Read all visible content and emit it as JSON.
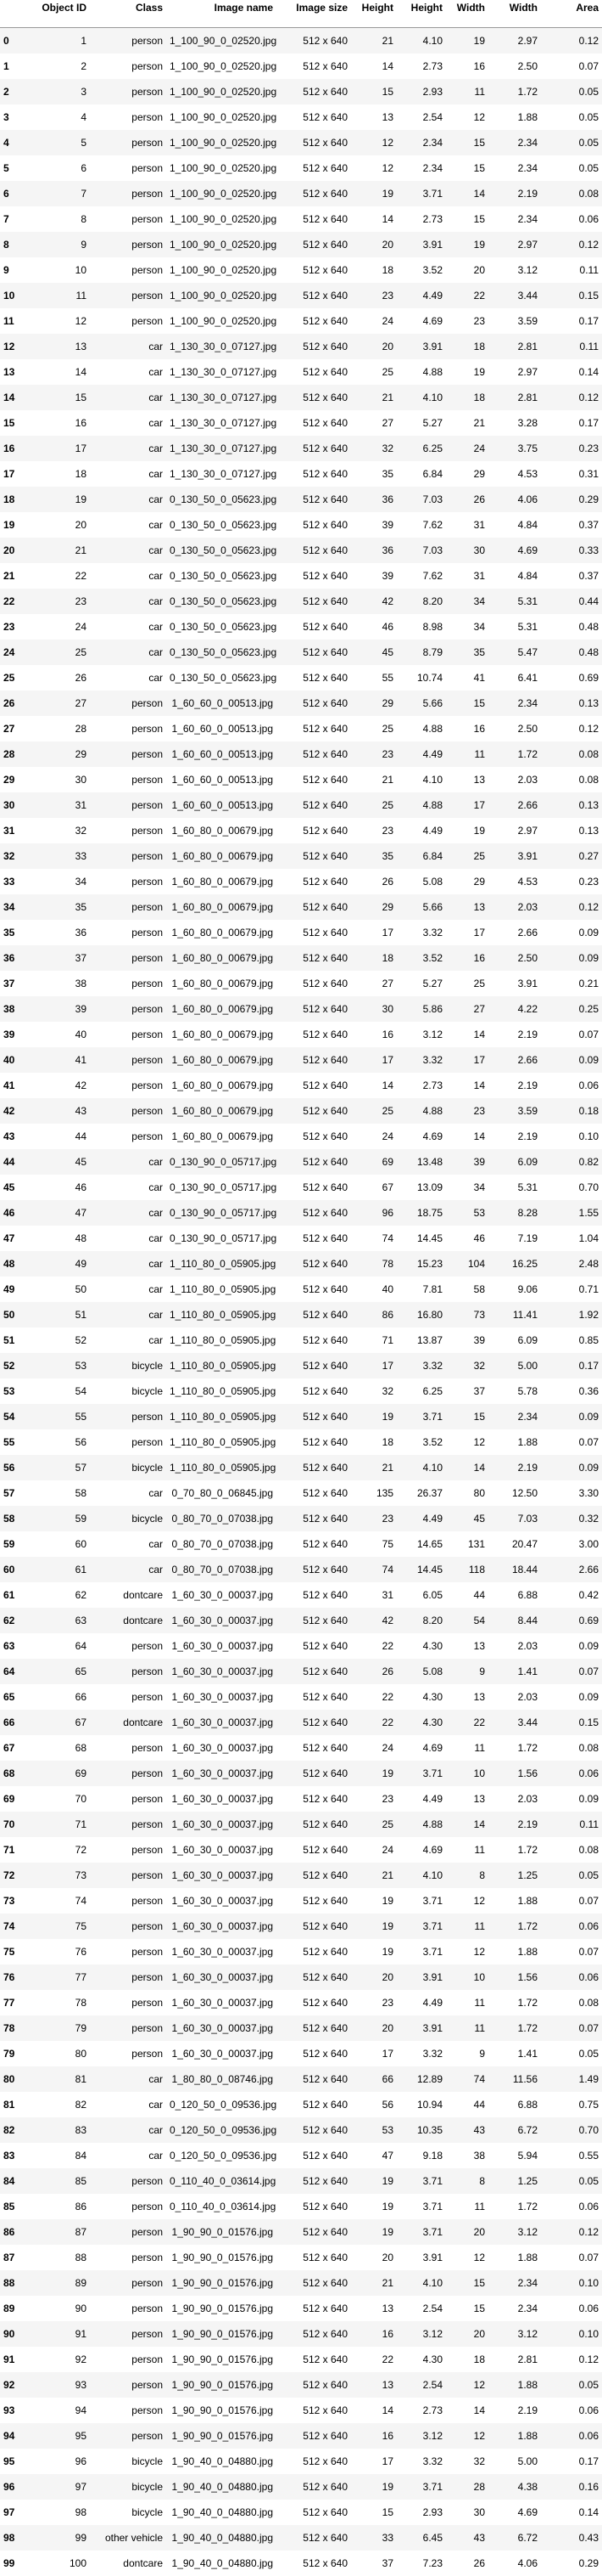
{
  "table": {
    "columns": [
      "",
      "Object ID",
      "Class",
      "Image name",
      "Image size",
      "Height",
      "Height",
      "Width",
      "Width",
      "Area"
    ],
    "rows": [
      [
        "0",
        "1",
        "person",
        "1_100_90_0_02520.jpg",
        "512 x 640",
        "21",
        "4.10",
        "19",
        "2.97",
        "0.12"
      ],
      [
        "1",
        "2",
        "person",
        "1_100_90_0_02520.jpg",
        "512 x 640",
        "14",
        "2.73",
        "16",
        "2.50",
        "0.07"
      ],
      [
        "2",
        "3",
        "person",
        "1_100_90_0_02520.jpg",
        "512 x 640",
        "15",
        "2.93",
        "11",
        "1.72",
        "0.05"
      ],
      [
        "3",
        "4",
        "person",
        "1_100_90_0_02520.jpg",
        "512 x 640",
        "13",
        "2.54",
        "12",
        "1.88",
        "0.05"
      ],
      [
        "4",
        "5",
        "person",
        "1_100_90_0_02520.jpg",
        "512 x 640",
        "12",
        "2.34",
        "15",
        "2.34",
        "0.05"
      ],
      [
        "5",
        "6",
        "person",
        "1_100_90_0_02520.jpg",
        "512 x 640",
        "12",
        "2.34",
        "15",
        "2.34",
        "0.05"
      ],
      [
        "6",
        "7",
        "person",
        "1_100_90_0_02520.jpg",
        "512 x 640",
        "19",
        "3.71",
        "14",
        "2.19",
        "0.08"
      ],
      [
        "7",
        "8",
        "person",
        "1_100_90_0_02520.jpg",
        "512 x 640",
        "14",
        "2.73",
        "15",
        "2.34",
        "0.06"
      ],
      [
        "8",
        "9",
        "person",
        "1_100_90_0_02520.jpg",
        "512 x 640",
        "20",
        "3.91",
        "19",
        "2.97",
        "0.12"
      ],
      [
        "9",
        "10",
        "person",
        "1_100_90_0_02520.jpg",
        "512 x 640",
        "18",
        "3.52",
        "20",
        "3.12",
        "0.11"
      ],
      [
        "10",
        "11",
        "person",
        "1_100_90_0_02520.jpg",
        "512 x 640",
        "23",
        "4.49",
        "22",
        "3.44",
        "0.15"
      ],
      [
        "11",
        "12",
        "person",
        "1_100_90_0_02520.jpg",
        "512 x 640",
        "24",
        "4.69",
        "23",
        "3.59",
        "0.17"
      ],
      [
        "12",
        "13",
        "car",
        "1_130_30_0_07127.jpg",
        "512 x 640",
        "20",
        "3.91",
        "18",
        "2.81",
        "0.11"
      ],
      [
        "13",
        "14",
        "car",
        "1_130_30_0_07127.jpg",
        "512 x 640",
        "25",
        "4.88",
        "19",
        "2.97",
        "0.14"
      ],
      [
        "14",
        "15",
        "car",
        "1_130_30_0_07127.jpg",
        "512 x 640",
        "21",
        "4.10",
        "18",
        "2.81",
        "0.12"
      ],
      [
        "15",
        "16",
        "car",
        "1_130_30_0_07127.jpg",
        "512 x 640",
        "27",
        "5.27",
        "21",
        "3.28",
        "0.17"
      ],
      [
        "16",
        "17",
        "car",
        "1_130_30_0_07127.jpg",
        "512 x 640",
        "32",
        "6.25",
        "24",
        "3.75",
        "0.23"
      ],
      [
        "17",
        "18",
        "car",
        "1_130_30_0_07127.jpg",
        "512 x 640",
        "35",
        "6.84",
        "29",
        "4.53",
        "0.31"
      ],
      [
        "18",
        "19",
        "car",
        "0_130_50_0_05623.jpg",
        "512 x 640",
        "36",
        "7.03",
        "26",
        "4.06",
        "0.29"
      ],
      [
        "19",
        "20",
        "car",
        "0_130_50_0_05623.jpg",
        "512 x 640",
        "39",
        "7.62",
        "31",
        "4.84",
        "0.37"
      ],
      [
        "20",
        "21",
        "car",
        "0_130_50_0_05623.jpg",
        "512 x 640",
        "36",
        "7.03",
        "30",
        "4.69",
        "0.33"
      ],
      [
        "21",
        "22",
        "car",
        "0_130_50_0_05623.jpg",
        "512 x 640",
        "39",
        "7.62",
        "31",
        "4.84",
        "0.37"
      ],
      [
        "22",
        "23",
        "car",
        "0_130_50_0_05623.jpg",
        "512 x 640",
        "42",
        "8.20",
        "34",
        "5.31",
        "0.44"
      ],
      [
        "23",
        "24",
        "car",
        "0_130_50_0_05623.jpg",
        "512 x 640",
        "46",
        "8.98",
        "34",
        "5.31",
        "0.48"
      ],
      [
        "24",
        "25",
        "car",
        "0_130_50_0_05623.jpg",
        "512 x 640",
        "45",
        "8.79",
        "35",
        "5.47",
        "0.48"
      ],
      [
        "25",
        "26",
        "car",
        "0_130_50_0_05623.jpg",
        "512 x 640",
        "55",
        "10.74",
        "41",
        "6.41",
        "0.69"
      ],
      [
        "26",
        "27",
        "person",
        "1_60_60_0_00513.jpg",
        "512 x 640",
        "29",
        "5.66",
        "15",
        "2.34",
        "0.13"
      ],
      [
        "27",
        "28",
        "person",
        "1_60_60_0_00513.jpg",
        "512 x 640",
        "25",
        "4.88",
        "16",
        "2.50",
        "0.12"
      ],
      [
        "28",
        "29",
        "person",
        "1_60_60_0_00513.jpg",
        "512 x 640",
        "23",
        "4.49",
        "11",
        "1.72",
        "0.08"
      ],
      [
        "29",
        "30",
        "person",
        "1_60_60_0_00513.jpg",
        "512 x 640",
        "21",
        "4.10",
        "13",
        "2.03",
        "0.08"
      ],
      [
        "30",
        "31",
        "person",
        "1_60_60_0_00513.jpg",
        "512 x 640",
        "25",
        "4.88",
        "17",
        "2.66",
        "0.13"
      ],
      [
        "31",
        "32",
        "person",
        "1_60_80_0_00679.jpg",
        "512 x 640",
        "23",
        "4.49",
        "19",
        "2.97",
        "0.13"
      ],
      [
        "32",
        "33",
        "person",
        "1_60_80_0_00679.jpg",
        "512 x 640",
        "35",
        "6.84",
        "25",
        "3.91",
        "0.27"
      ],
      [
        "33",
        "34",
        "person",
        "1_60_80_0_00679.jpg",
        "512 x 640",
        "26",
        "5.08",
        "29",
        "4.53",
        "0.23"
      ],
      [
        "34",
        "35",
        "person",
        "1_60_80_0_00679.jpg",
        "512 x 640",
        "29",
        "5.66",
        "13",
        "2.03",
        "0.12"
      ],
      [
        "35",
        "36",
        "person",
        "1_60_80_0_00679.jpg",
        "512 x 640",
        "17",
        "3.32",
        "17",
        "2.66",
        "0.09"
      ],
      [
        "36",
        "37",
        "person",
        "1_60_80_0_00679.jpg",
        "512 x 640",
        "18",
        "3.52",
        "16",
        "2.50",
        "0.09"
      ],
      [
        "37",
        "38",
        "person",
        "1_60_80_0_00679.jpg",
        "512 x 640",
        "27",
        "5.27",
        "25",
        "3.91",
        "0.21"
      ],
      [
        "38",
        "39",
        "person",
        "1_60_80_0_00679.jpg",
        "512 x 640",
        "30",
        "5.86",
        "27",
        "4.22",
        "0.25"
      ],
      [
        "39",
        "40",
        "person",
        "1_60_80_0_00679.jpg",
        "512 x 640",
        "16",
        "3.12",
        "14",
        "2.19",
        "0.07"
      ],
      [
        "40",
        "41",
        "person",
        "1_60_80_0_00679.jpg",
        "512 x 640",
        "17",
        "3.32",
        "17",
        "2.66",
        "0.09"
      ],
      [
        "41",
        "42",
        "person",
        "1_60_80_0_00679.jpg",
        "512 x 640",
        "14",
        "2.73",
        "14",
        "2.19",
        "0.06"
      ],
      [
        "42",
        "43",
        "person",
        "1_60_80_0_00679.jpg",
        "512 x 640",
        "25",
        "4.88",
        "23",
        "3.59",
        "0.18"
      ],
      [
        "43",
        "44",
        "person",
        "1_60_80_0_00679.jpg",
        "512 x 640",
        "24",
        "4.69",
        "14",
        "2.19",
        "0.10"
      ],
      [
        "44",
        "45",
        "car",
        "0_130_90_0_05717.jpg",
        "512 x 640",
        "69",
        "13.48",
        "39",
        "6.09",
        "0.82"
      ],
      [
        "45",
        "46",
        "car",
        "0_130_90_0_05717.jpg",
        "512 x 640",
        "67",
        "13.09",
        "34",
        "5.31",
        "0.70"
      ],
      [
        "46",
        "47",
        "car",
        "0_130_90_0_05717.jpg",
        "512 x 640",
        "96",
        "18.75",
        "53",
        "8.28",
        "1.55"
      ],
      [
        "47",
        "48",
        "car",
        "0_130_90_0_05717.jpg",
        "512 x 640",
        "74",
        "14.45",
        "46",
        "7.19",
        "1.04"
      ],
      [
        "48",
        "49",
        "car",
        "1_110_80_0_05905.jpg",
        "512 x 640",
        "78",
        "15.23",
        "104",
        "16.25",
        "2.48"
      ],
      [
        "49",
        "50",
        "car",
        "1_110_80_0_05905.jpg",
        "512 x 640",
        "40",
        "7.81",
        "58",
        "9.06",
        "0.71"
      ],
      [
        "50",
        "51",
        "car",
        "1_110_80_0_05905.jpg",
        "512 x 640",
        "86",
        "16.80",
        "73",
        "11.41",
        "1.92"
      ],
      [
        "51",
        "52",
        "car",
        "1_110_80_0_05905.jpg",
        "512 x 640",
        "71",
        "13.87",
        "39",
        "6.09",
        "0.85"
      ],
      [
        "52",
        "53",
        "bicycle",
        "1_110_80_0_05905.jpg",
        "512 x 640",
        "17",
        "3.32",
        "32",
        "5.00",
        "0.17"
      ],
      [
        "53",
        "54",
        "bicycle",
        "1_110_80_0_05905.jpg",
        "512 x 640",
        "32",
        "6.25",
        "37",
        "5.78",
        "0.36"
      ],
      [
        "54",
        "55",
        "person",
        "1_110_80_0_05905.jpg",
        "512 x 640",
        "19",
        "3.71",
        "15",
        "2.34",
        "0.09"
      ],
      [
        "55",
        "56",
        "person",
        "1_110_80_0_05905.jpg",
        "512 x 640",
        "18",
        "3.52",
        "12",
        "1.88",
        "0.07"
      ],
      [
        "56",
        "57",
        "bicycle",
        "1_110_80_0_05905.jpg",
        "512 x 640",
        "21",
        "4.10",
        "14",
        "2.19",
        "0.09"
      ],
      [
        "57",
        "58",
        "car",
        "0_70_80_0_06845.jpg",
        "512 x 640",
        "135",
        "26.37",
        "80",
        "12.50",
        "3.30"
      ],
      [
        "58",
        "59",
        "bicycle",
        "0_80_70_0_07038.jpg",
        "512 x 640",
        "23",
        "4.49",
        "45",
        "7.03",
        "0.32"
      ],
      [
        "59",
        "60",
        "car",
        "0_80_70_0_07038.jpg",
        "512 x 640",
        "75",
        "14.65",
        "131",
        "20.47",
        "3.00"
      ],
      [
        "60",
        "61",
        "car",
        "0_80_70_0_07038.jpg",
        "512 x 640",
        "74",
        "14.45",
        "118",
        "18.44",
        "2.66"
      ],
      [
        "61",
        "62",
        "dontcare",
        "1_60_30_0_00037.jpg",
        "512 x 640",
        "31",
        "6.05",
        "44",
        "6.88",
        "0.42"
      ],
      [
        "62",
        "63",
        "dontcare",
        "1_60_30_0_00037.jpg",
        "512 x 640",
        "42",
        "8.20",
        "54",
        "8.44",
        "0.69"
      ],
      [
        "63",
        "64",
        "person",
        "1_60_30_0_00037.jpg",
        "512 x 640",
        "22",
        "4.30",
        "13",
        "2.03",
        "0.09"
      ],
      [
        "64",
        "65",
        "person",
        "1_60_30_0_00037.jpg",
        "512 x 640",
        "26",
        "5.08",
        "9",
        "1.41",
        "0.07"
      ],
      [
        "65",
        "66",
        "person",
        "1_60_30_0_00037.jpg",
        "512 x 640",
        "22",
        "4.30",
        "13",
        "2.03",
        "0.09"
      ],
      [
        "66",
        "67",
        "dontcare",
        "1_60_30_0_00037.jpg",
        "512 x 640",
        "22",
        "4.30",
        "22",
        "3.44",
        "0.15"
      ],
      [
        "67",
        "68",
        "person",
        "1_60_30_0_00037.jpg",
        "512 x 640",
        "24",
        "4.69",
        "11",
        "1.72",
        "0.08"
      ],
      [
        "68",
        "69",
        "person",
        "1_60_30_0_00037.jpg",
        "512 x 640",
        "19",
        "3.71",
        "10",
        "1.56",
        "0.06"
      ],
      [
        "69",
        "70",
        "person",
        "1_60_30_0_00037.jpg",
        "512 x 640",
        "23",
        "4.49",
        "13",
        "2.03",
        "0.09"
      ],
      [
        "70",
        "71",
        "person",
        "1_60_30_0_00037.jpg",
        "512 x 640",
        "25",
        "4.88",
        "14",
        "2.19",
        "0.11"
      ],
      [
        "71",
        "72",
        "person",
        "1_60_30_0_00037.jpg",
        "512 x 640",
        "24",
        "4.69",
        "11",
        "1.72",
        "0.08"
      ],
      [
        "72",
        "73",
        "person",
        "1_60_30_0_00037.jpg",
        "512 x 640",
        "21",
        "4.10",
        "8",
        "1.25",
        "0.05"
      ],
      [
        "73",
        "74",
        "person",
        "1_60_30_0_00037.jpg",
        "512 x 640",
        "19",
        "3.71",
        "12",
        "1.88",
        "0.07"
      ],
      [
        "74",
        "75",
        "person",
        "1_60_30_0_00037.jpg",
        "512 x 640",
        "19",
        "3.71",
        "11",
        "1.72",
        "0.06"
      ],
      [
        "75",
        "76",
        "person",
        "1_60_30_0_00037.jpg",
        "512 x 640",
        "19",
        "3.71",
        "12",
        "1.88",
        "0.07"
      ],
      [
        "76",
        "77",
        "person",
        "1_60_30_0_00037.jpg",
        "512 x 640",
        "20",
        "3.91",
        "10",
        "1.56",
        "0.06"
      ],
      [
        "77",
        "78",
        "person",
        "1_60_30_0_00037.jpg",
        "512 x 640",
        "23",
        "4.49",
        "11",
        "1.72",
        "0.08"
      ],
      [
        "78",
        "79",
        "person",
        "1_60_30_0_00037.jpg",
        "512 x 640",
        "20",
        "3.91",
        "11",
        "1.72",
        "0.07"
      ],
      [
        "79",
        "80",
        "person",
        "1_60_30_0_00037.jpg",
        "512 x 640",
        "17",
        "3.32",
        "9",
        "1.41",
        "0.05"
      ],
      [
        "80",
        "81",
        "car",
        "1_80_80_0_08746.jpg",
        "512 x 640",
        "66",
        "12.89",
        "74",
        "11.56",
        "1.49"
      ],
      [
        "81",
        "82",
        "car",
        "0_120_50_0_09536.jpg",
        "512 x 640",
        "56",
        "10.94",
        "44",
        "6.88",
        "0.75"
      ],
      [
        "82",
        "83",
        "car",
        "0_120_50_0_09536.jpg",
        "512 x 640",
        "53",
        "10.35",
        "43",
        "6.72",
        "0.70"
      ],
      [
        "83",
        "84",
        "car",
        "0_120_50_0_09536.jpg",
        "512 x 640",
        "47",
        "9.18",
        "38",
        "5.94",
        "0.55"
      ],
      [
        "84",
        "85",
        "person",
        "0_110_40_0_03614.jpg",
        "512 x 640",
        "19",
        "3.71",
        "8",
        "1.25",
        "0.05"
      ],
      [
        "85",
        "86",
        "person",
        "0_110_40_0_03614.jpg",
        "512 x 640",
        "19",
        "3.71",
        "11",
        "1.72",
        "0.06"
      ],
      [
        "86",
        "87",
        "person",
        "1_90_90_0_01576.jpg",
        "512 x 640",
        "19",
        "3.71",
        "20",
        "3.12",
        "0.12"
      ],
      [
        "87",
        "88",
        "person",
        "1_90_90_0_01576.jpg",
        "512 x 640",
        "20",
        "3.91",
        "12",
        "1.88",
        "0.07"
      ],
      [
        "88",
        "89",
        "person",
        "1_90_90_0_01576.jpg",
        "512 x 640",
        "21",
        "4.10",
        "15",
        "2.34",
        "0.10"
      ],
      [
        "89",
        "90",
        "person",
        "1_90_90_0_01576.jpg",
        "512 x 640",
        "13",
        "2.54",
        "15",
        "2.34",
        "0.06"
      ],
      [
        "90",
        "91",
        "person",
        "1_90_90_0_01576.jpg",
        "512 x 640",
        "16",
        "3.12",
        "20",
        "3.12",
        "0.10"
      ],
      [
        "91",
        "92",
        "person",
        "1_90_90_0_01576.jpg",
        "512 x 640",
        "22",
        "4.30",
        "18",
        "2.81",
        "0.12"
      ],
      [
        "92",
        "93",
        "person",
        "1_90_90_0_01576.jpg",
        "512 x 640",
        "13",
        "2.54",
        "12",
        "1.88",
        "0.05"
      ],
      [
        "93",
        "94",
        "person",
        "1_90_90_0_01576.jpg",
        "512 x 640",
        "14",
        "2.73",
        "14",
        "2.19",
        "0.06"
      ],
      [
        "94",
        "95",
        "person",
        "1_90_90_0_01576.jpg",
        "512 x 640",
        "16",
        "3.12",
        "12",
        "1.88",
        "0.06"
      ],
      [
        "95",
        "96",
        "bicycle",
        "1_90_40_0_04880.jpg",
        "512 x 640",
        "17",
        "3.32",
        "32",
        "5.00",
        "0.17"
      ],
      [
        "96",
        "97",
        "bicycle",
        "1_90_40_0_04880.jpg",
        "512 x 640",
        "19",
        "3.71",
        "28",
        "4.38",
        "0.16"
      ],
      [
        "97",
        "98",
        "bicycle",
        "1_90_40_0_04880.jpg",
        "512 x 640",
        "15",
        "2.93",
        "30",
        "4.69",
        "0.14"
      ],
      [
        "98",
        "99",
        "other vehicle",
        "1_90_40_0_04880.jpg",
        "512 x 640",
        "33",
        "6.45",
        "43",
        "6.72",
        "0.43"
      ],
      [
        "99",
        "100",
        "dontcare",
        "1_90_40_0_04880.jpg",
        "512 x 640",
        "37",
        "7.23",
        "26",
        "4.06",
        "0.29"
      ]
    ]
  }
}
